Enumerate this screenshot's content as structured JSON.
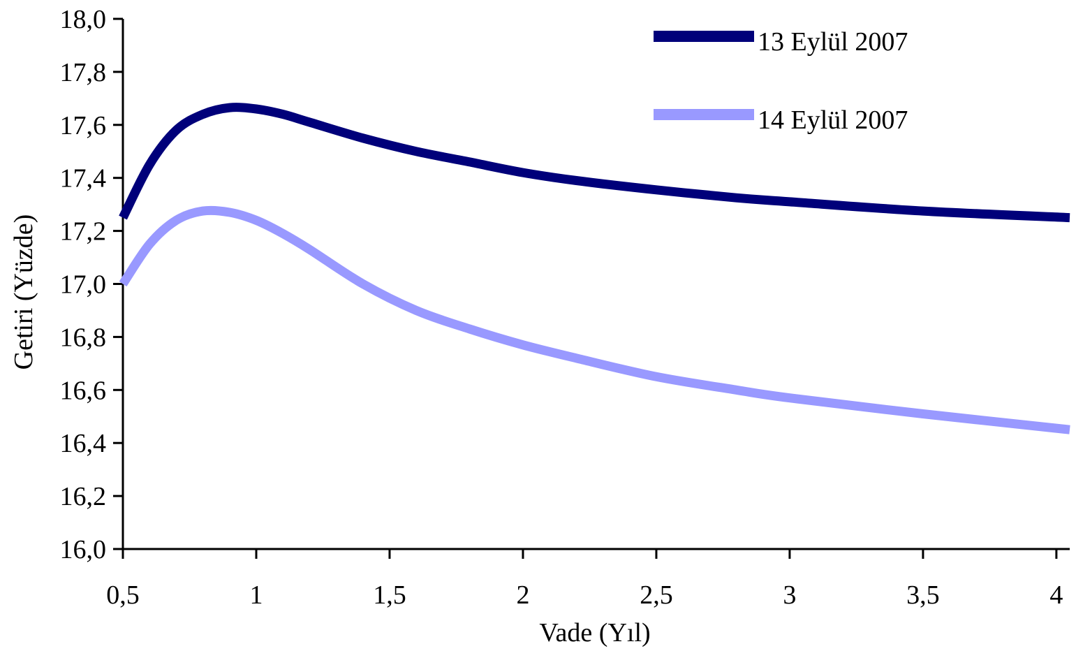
{
  "chart_data": {
    "type": "line",
    "title": "",
    "xlabel": "Vade (Yıl)",
    "ylabel": "Getiri (Yüzde)",
    "xlim": [
      0.5,
      4.05
    ],
    "ylim": [
      16.0,
      18.0
    ],
    "x_ticks": [
      0.5,
      1,
      1.5,
      2,
      2.5,
      3,
      3.5,
      4
    ],
    "x_tick_labels": [
      "0,5",
      "1",
      "1,5",
      "2",
      "2,5",
      "3",
      "3,5",
      "4"
    ],
    "y_ticks": [
      16.0,
      16.2,
      16.4,
      16.6,
      16.8,
      17.0,
      17.2,
      17.4,
      17.6,
      17.8,
      18.0
    ],
    "y_tick_labels": [
      "16,0",
      "16,2",
      "16,4",
      "16,6",
      "16,8",
      "17,0",
      "17,2",
      "17,4",
      "17,6",
      "17,8",
      "18,0"
    ],
    "grid": false,
    "legend_position": "top-right",
    "x": [
      0.5,
      0.6,
      0.7,
      0.8,
      0.9,
      1.0,
      1.1,
      1.2,
      1.4,
      1.6,
      1.8,
      2.0,
      2.2,
      2.5,
      2.8,
      3.0,
      3.5,
      4.05
    ],
    "series": [
      {
        "name": "13 Eylül 2007",
        "color": "#00007a",
        "values": [
          17.25,
          17.45,
          17.58,
          17.64,
          17.665,
          17.66,
          17.64,
          17.61,
          17.55,
          17.5,
          17.46,
          17.42,
          17.39,
          17.355,
          17.325,
          17.31,
          17.275,
          17.25
        ]
      },
      {
        "name": "14 Eylül 2007",
        "color": "#9999ff",
        "values": [
          17.0,
          17.15,
          17.24,
          17.275,
          17.27,
          17.24,
          17.19,
          17.13,
          17.0,
          16.9,
          16.83,
          16.77,
          16.72,
          16.65,
          16.6,
          16.57,
          16.51,
          16.45
        ]
      }
    ]
  }
}
